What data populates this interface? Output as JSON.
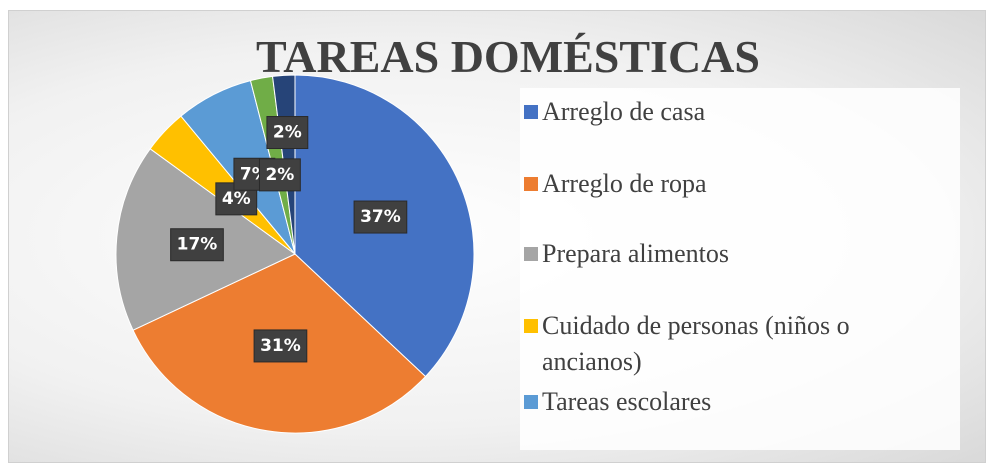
{
  "chart_data": {
    "type": "pie",
    "title": "TAREAS DOMÉSTICAS",
    "categories": [
      "Arreglo de casa",
      "Arreglo de ropa",
      "Prepara alimentos",
      "Cuidado de personas (niños o ancianos)",
      "Tareas escolares",
      null,
      null
    ],
    "values": [
      37,
      31,
      17,
      4,
      7,
      2,
      2
    ],
    "value_labels": [
      "37%",
      "31%",
      "17%",
      "4%",
      "7%",
      "2%",
      "2%"
    ],
    "colors": [
      "#4472c4",
      "#ed7d31",
      "#a5a5a5",
      "#ffc000",
      "#5b9bd5",
      "#70ad47",
      "#264478"
    ],
    "legend": "right"
  }
}
